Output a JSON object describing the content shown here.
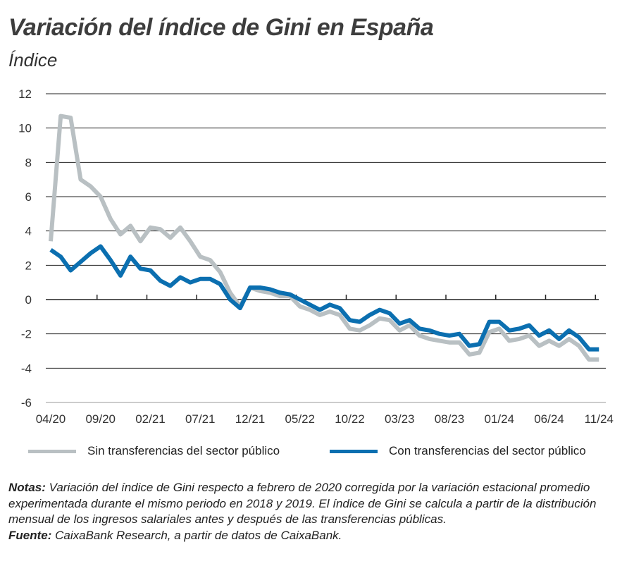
{
  "chart_data": {
    "type": "line",
    "title": "Variación del índice de Gini en España",
    "subtitle": "Índice",
    "xlabel": "",
    "ylabel": "",
    "ylim": [
      -6,
      12
    ],
    "yticks": [
      "12",
      "10",
      "8",
      "6",
      "4",
      "2",
      "0",
      "-2",
      "-4",
      "-6"
    ],
    "xtick_labels": [
      "04/20",
      "09/20",
      "02/21",
      "07/21",
      "12/21",
      "05/22",
      "10/22",
      "03/23",
      "08/23",
      "01/24",
      "06/24",
      "11/24"
    ],
    "grid": true,
    "legend_position": "bottom",
    "x_start": "04/2020",
    "x_end": "11/2024",
    "series": [
      {
        "name": "Sin transferencias del sector público",
        "color": "#b9c0c3",
        "values": [
          3.4,
          10.7,
          10.6,
          7.0,
          6.6,
          6.0,
          4.7,
          3.8,
          4.3,
          3.4,
          4.2,
          4.1,
          3.6,
          4.2,
          3.4,
          2.5,
          2.3,
          1.6,
          0.4,
          -0.4,
          0.7,
          0.5,
          0.4,
          0.2,
          0.2,
          -0.4,
          -0.6,
          -0.9,
          -0.7,
          -0.9,
          -1.7,
          -1.8,
          -1.5,
          -1.1,
          -1.2,
          -1.8,
          -1.5,
          -2.1,
          -2.3,
          -2.4,
          -2.5,
          -2.5,
          -3.2,
          -3.1,
          -1.9,
          -1.7,
          -2.4,
          -2.3,
          -2.1,
          -2.7,
          -2.4,
          -2.7,
          -2.3,
          -2.7,
          -3.5,
          -3.5
        ]
      },
      {
        "name": "Con transferencias del sector público",
        "color": "#0b6fb0",
        "values": [
          2.9,
          2.5,
          1.7,
          2.2,
          2.7,
          3.1,
          2.3,
          1.4,
          2.5,
          1.8,
          1.7,
          1.1,
          0.8,
          1.3,
          1.0,
          1.2,
          1.2,
          0.9,
          0.0,
          -0.5,
          0.7,
          0.7,
          0.6,
          0.4,
          0.3,
          0.0,
          -0.3,
          -0.6,
          -0.3,
          -0.5,
          -1.2,
          -1.3,
          -0.9,
          -0.6,
          -0.8,
          -1.4,
          -1.2,
          -1.7,
          -1.8,
          -2.0,
          -2.1,
          -2.0,
          -2.7,
          -2.6,
          -1.3,
          -1.3,
          -1.8,
          -1.7,
          -1.5,
          -2.1,
          -1.8,
          -2.3,
          -1.8,
          -2.2,
          -2.9,
          -2.9
        ]
      }
    ]
  },
  "notes": {
    "notes_label": "Notas:",
    "notes_text": " Variación del índice de Gini respecto a febrero de 2020 corregida por la variación estacional promedio experimentada durante el mismo periodo en 2018 y 2019. El índice de Gini se calcula a partir de la distribución mensual de los ingresos salariales antes y después de las transferencias públicas.",
    "source_label": "Fuente:",
    "source_text": " CaixaBank Research, a partir de datos de CaixaBank."
  }
}
